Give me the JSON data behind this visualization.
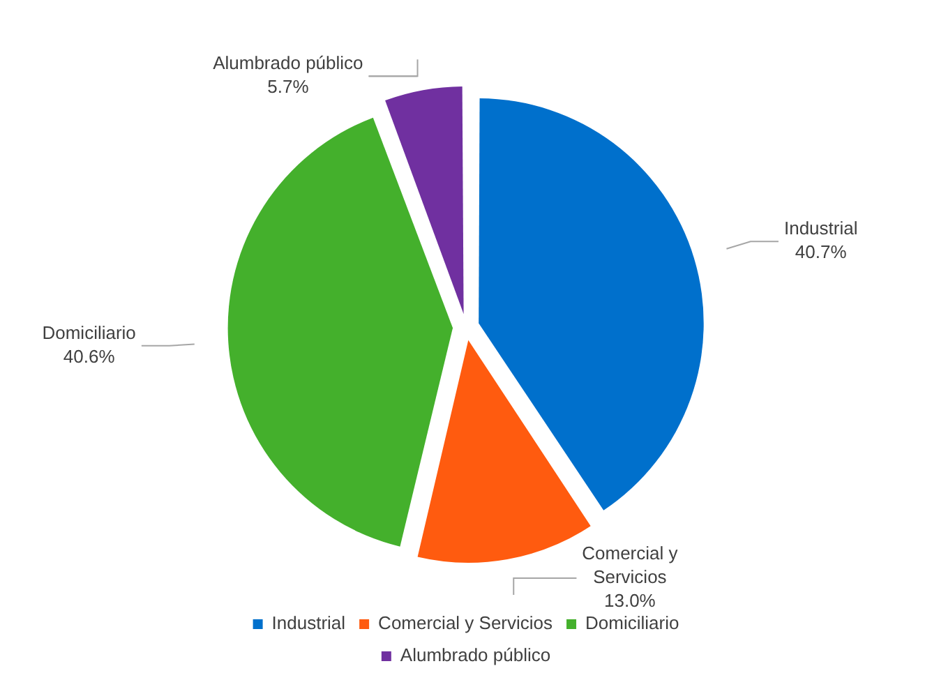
{
  "chart_data": {
    "type": "pie",
    "categories": [
      "Industrial",
      "Comercial y Servicios",
      "Domiciliario",
      "Alumbrado público"
    ],
    "values": [
      40.7,
      13.0,
      40.6,
      5.7
    ],
    "value_labels": [
      "40.7%",
      "13.0%",
      "40.6%",
      "5.7%"
    ],
    "colors": [
      "#0070cc",
      "#ff5b0f",
      "#44b02c",
      "#7030a0"
    ],
    "legend": "bottom"
  }
}
